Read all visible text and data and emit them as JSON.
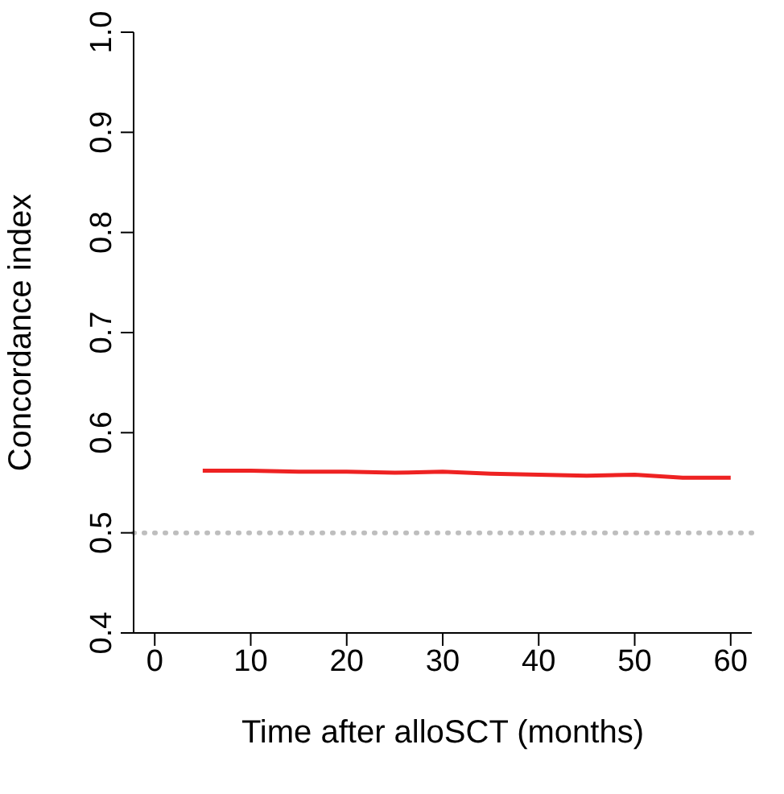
{
  "chart_data": {
    "type": "line",
    "xlabel": "Time after alloSCT (months)",
    "ylabel": "Concordance index",
    "x": [
      5,
      10,
      15,
      20,
      25,
      30,
      35,
      40,
      45,
      50,
      55,
      60
    ],
    "series": [
      {
        "color": "#ee2222",
        "values": [
          0.562,
          0.562,
          0.561,
          0.561,
          0.56,
          0.561,
          0.559,
          0.558,
          0.557,
          0.558,
          0.555,
          0.555
        ]
      }
    ],
    "xlim": [
      -2.2,
      62.2
    ],
    "xticks": [
      0,
      10,
      20,
      30,
      40,
      50,
      60
    ],
    "ylim": [
      0.4,
      1.0
    ],
    "yticks": [
      0.4,
      0.5,
      0.6,
      0.7,
      0.8,
      0.9,
      {
        "value": 1.0,
        "label": "1.0"
      }
    ],
    "ref_lines": [
      {
        "axis": "y",
        "value": 0.5,
        "color": "#bebebe",
        "line_style": "dotted"
      }
    ],
    "grid": false,
    "legend": false,
    "marker": "none",
    "line_style": "solid"
  }
}
